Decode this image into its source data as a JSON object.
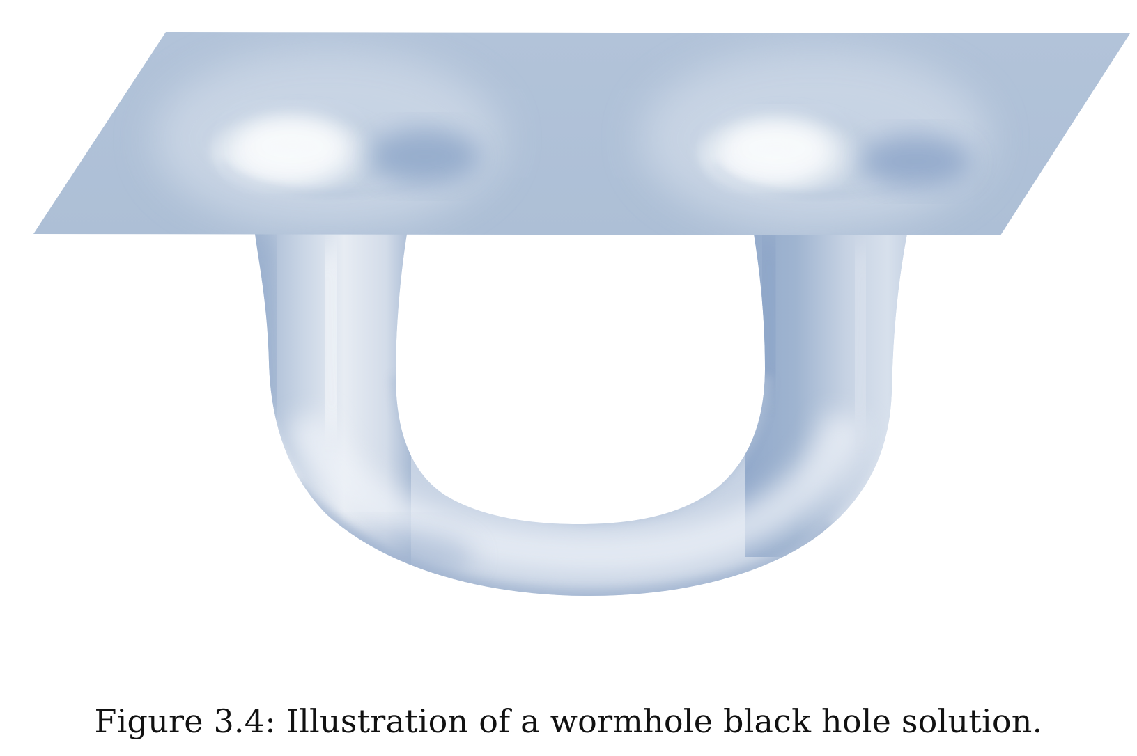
{
  "caption": "Figure 3.4: Illustration of a wormhole black hole solution.",
  "colors": {
    "sheet": "#b0c2d8",
    "tube_light": "#e9edf4",
    "tube_mid": "#c5d2e3",
    "tube_dark": "#8ea6c8",
    "highlight": "#f6f8fb"
  }
}
